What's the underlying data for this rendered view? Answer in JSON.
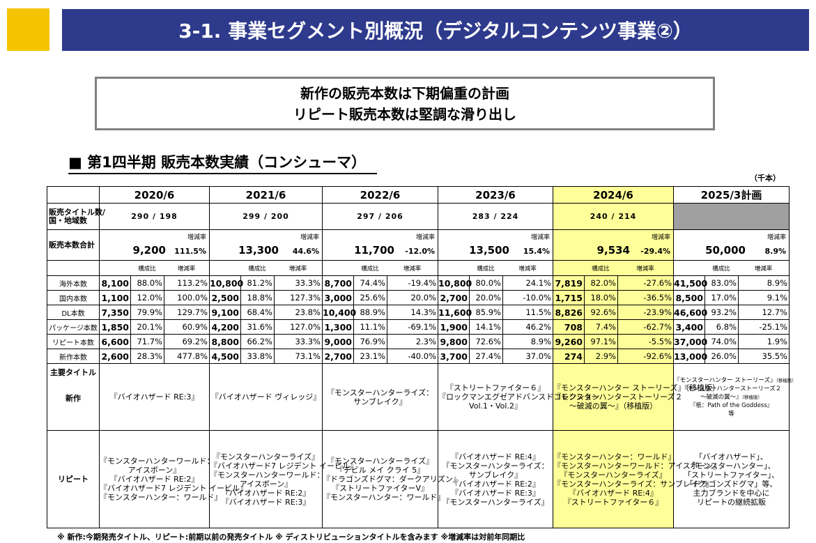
{
  "header": {
    "title": "3-1.  事業セグメント別概況（デジタルコンテンツ事業②）"
  },
  "headline": {
    "line1": "新作の販売本数は下期偏重の計画",
    "line2": "リピート販売本数は堅調な滑り出し"
  },
  "section": {
    "title": "■  第1四半期  販売本数実績（コンシューマ）",
    "unit": "（千本）"
  },
  "years": [
    "2020/6",
    "2021/6",
    "2022/6",
    "2023/6",
    "2024/6",
    "2025/3計画"
  ],
  "labels": {
    "titles_count": "販売タイトル数/国・地域数",
    "titles_count_l1": "販売タイトル数/",
    "titles_count_l2": "国・地域数",
    "total": "販売本数合計",
    "growth": "増減率",
    "ratio": "構成比",
    "main_titles": "主要タイトル",
    "new": "新作",
    "repeat": "リピート"
  },
  "title_counts": [
    "290  /  198",
    "299  /  200",
    "297  /  206",
    "283  /  224",
    "240  /  214",
    ""
  ],
  "totals": [
    {
      "value": "9,200",
      "growth": "111.5%"
    },
    {
      "value": "13,300",
      "growth": "44.6%"
    },
    {
      "value": "11,700",
      "growth": "-12.0%"
    },
    {
      "value": "13,500",
      "growth": "15.4%"
    },
    {
      "value": "9,534",
      "growth": "-29.4%"
    },
    {
      "value": "50,000",
      "growth": "8.9%"
    }
  ],
  "rows": [
    {
      "label": "海外本数",
      "cells": [
        [
          "8,100",
          "88.0%",
          "113.2%"
        ],
        [
          "10,800",
          "81.2%",
          "33.3%"
        ],
        [
          "8,700",
          "74.4%",
          "-19.4%"
        ],
        [
          "10,800",
          "80.0%",
          "24.1%"
        ],
        [
          "7,819",
          "82.0%",
          "-27.6%"
        ],
        [
          "41,500",
          "83.0%",
          "8.9%"
        ]
      ]
    },
    {
      "label": "国内本数",
      "cells": [
        [
          "1,100",
          "12.0%",
          "100.0%"
        ],
        [
          "2,500",
          "18.8%",
          "127.3%"
        ],
        [
          "3,000",
          "25.6%",
          "20.0%"
        ],
        [
          "2,700",
          "20.0%",
          "-10.0%"
        ],
        [
          "1,715",
          "18.0%",
          "-36.5%"
        ],
        [
          "8,500",
          "17.0%",
          "9.1%"
        ]
      ]
    },
    {
      "label": "DL本数",
      "cells": [
        [
          "7,350",
          "79.9%",
          "129.7%"
        ],
        [
          "9,100",
          "68.4%",
          "23.8%"
        ],
        [
          "10,400",
          "88.9%",
          "14.3%"
        ],
        [
          "11,600",
          "85.9%",
          "11.5%"
        ],
        [
          "8,826",
          "92.6%",
          "-23.9%"
        ],
        [
          "46,600",
          "93.2%",
          "12.7%"
        ]
      ]
    },
    {
      "label": "パッケージ本数",
      "cells": [
        [
          "1,850",
          "20.1%",
          "60.9%"
        ],
        [
          "4,200",
          "31.6%",
          "127.0%"
        ],
        [
          "1,300",
          "11.1%",
          "-69.1%"
        ],
        [
          "1,900",
          "14.1%",
          "46.2%"
        ],
        [
          "708",
          "7.4%",
          "-62.7%"
        ],
        [
          "3,400",
          "6.8%",
          "-25.1%"
        ]
      ]
    },
    {
      "label": "リピート本数",
      "cells": [
        [
          "6,600",
          "71.7%",
          "69.2%"
        ],
        [
          "8,800",
          "66.2%",
          "33.3%"
        ],
        [
          "9,000",
          "76.9%",
          "2.3%"
        ],
        [
          "9,800",
          "72.6%",
          "8.9%"
        ],
        [
          "9,260",
          "97.1%",
          "-5.5%"
        ],
        [
          "37,000",
          "74.0%",
          "1.9%"
        ]
      ]
    },
    {
      "label": "新作本数",
      "cells": [
        [
          "2,600",
          "28.3%",
          "477.8%"
        ],
        [
          "4,500",
          "33.8%",
          "73.1%"
        ],
        [
          "2,700",
          "23.1%",
          "-40.0%"
        ],
        [
          "3,700",
          "27.4%",
          "37.0%"
        ],
        [
          "274",
          "2.9%",
          "-92.6%"
        ],
        [
          "13,000",
          "26.0%",
          "35.5%"
        ]
      ]
    }
  ],
  "new_titles": [
    [
      "『バイオハザード RE:3』"
    ],
    [
      "『バイオハザード ヴィレッジ』"
    ],
    [
      "『モンスターハンターライズ：",
      "サンブレイク』"
    ],
    [
      "『ストリートファイター６』",
      "『ロックマンエグゼアドバンスドコレクション",
      "Vol.1・Vol.2』"
    ],
    [
      "『モンスターハンター ストーリーズ』（移植版）",
      "『モンスターハンターストーリーズ２",
      "～破滅の翼～』（移植版）"
    ],
    [
      "『モンスターハンター ストーリーズ』",
      "『モンスターハンターストーリーズ２",
      "～破滅の翼～』",
      "『祇：Path of the Goddess』",
      "等"
    ]
  ],
  "new_titles_tags": {
    "porting": "（移植版）"
  },
  "repeat_titles": [
    [
      "『モンスターハンターワールド：",
      "アイスボーン』",
      "『バイオハザード RE:2』",
      "『バイオハザード7 レジデント イービル』",
      "『モンスターハンター：ワールド』"
    ],
    [
      "『モンスターハンターライズ』",
      "『バイオハザード7 レジデント イービル』",
      "『モンスターハンターワールド：",
      "アイスボーン』",
      "『バイオハザード RE:2』",
      "『バイオハザード RE:3』"
    ],
    [
      "『モンスターハンターライズ』",
      "『デビル メイ クライ 5』",
      "『ドラゴンズドグマ：ダークアリズン』",
      "『ストリートファイターV』",
      "『モンスターハンター：ワールド』"
    ],
    [
      "『バイオハザード RE:4』",
      "『モンスターハンターライズ：",
      "サンブレイク』",
      "『バイオハザード RE:2』",
      "『バイオハザード RE:3』",
      "『モンスターハンターライズ』"
    ],
    [
      "『モンスターハンター：ワールド』",
      "『モンスターハンターワールド：アイスボーン』",
      "『モンスターハンターライズ』",
      "『モンスターハンターライズ：サンブレイク』",
      "『バイオハザード RE:4』",
      "『ストリートファイター６』"
    ],
    [
      "「バイオハザード」、",
      "「モンスターハンター」、",
      "「ストリートファイター」、",
      "「ドラゴンズドグマ」等、",
      "主力ブランドを中心に",
      "リピートの継続拡販"
    ]
  ],
  "footnote": "※ 新作:今期発売タイトル、リピート:前期以前の発売タイトル  ※ ディストリビューションタイトルを含みます  ※増減率は対前年同期比",
  "colors": {
    "title_bar": "#2E3A8C",
    "accent_yellow": "#F5C400",
    "highlight": "#FFFF99",
    "plan_gray": "#A0A0A0"
  }
}
